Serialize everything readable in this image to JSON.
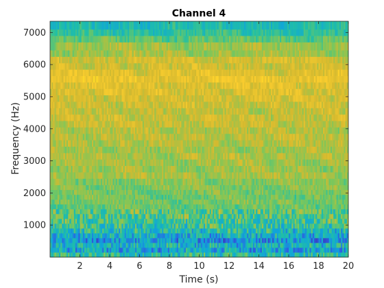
{
  "chart_data": {
    "type": "heatmap",
    "title": "Channel 4",
    "xlabel": "Time (s)",
    "ylabel": "Frequency (Hz)",
    "xlim": [
      0,
      20
    ],
    "ylim": [
      0,
      7350
    ],
    "xticks": [
      2,
      4,
      6,
      8,
      10,
      12,
      14,
      16,
      18,
      20
    ],
    "xtick_labels": [
      "2",
      "4",
      "6",
      "8",
      "10",
      "12",
      "14",
      "16",
      "18",
      "20"
    ],
    "yticks": [
      1000,
      2000,
      3000,
      4000,
      5000,
      6000,
      7000
    ],
    "ytick_labels": [
      "1000",
      "2000",
      "3000",
      "4000",
      "5000",
      "6000",
      "7000"
    ],
    "colormap": "parula",
    "colormap_stops": [
      "#3e26a8",
      "#2d5fe0",
      "#11a5d9",
      "#20bfa6",
      "#7cc75b",
      "#d5ba2f",
      "#fcce2e",
      "#f9fb15"
    ],
    "frequency_bands": [
      {
        "f": 0,
        "level": 0.42
      },
      {
        "f": 150,
        "level": 0.3
      },
      {
        "f": 300,
        "level": 0.36
      },
      {
        "f": 450,
        "level": 0.26
      },
      {
        "f": 600,
        "level": 0.33
      },
      {
        "f": 750,
        "level": 0.4
      },
      {
        "f": 900,
        "level": 0.45
      },
      {
        "f": 1050,
        "level": 0.47
      },
      {
        "f": 1200,
        "level": 0.5
      },
      {
        "f": 1350,
        "level": 0.52
      },
      {
        "f": 1500,
        "level": 0.54
      },
      {
        "f": 1650,
        "level": 0.56
      },
      {
        "f": 1800,
        "level": 0.55
      },
      {
        "f": 1950,
        "level": 0.56
      },
      {
        "f": 2100,
        "level": 0.58
      },
      {
        "f": 2250,
        "level": 0.59
      },
      {
        "f": 2450,
        "level": 0.64
      },
      {
        "f": 2650,
        "level": 0.62
      },
      {
        "f": 2850,
        "level": 0.63
      },
      {
        "f": 3050,
        "level": 0.65
      },
      {
        "f": 3250,
        "level": 0.63
      },
      {
        "f": 3450,
        "level": 0.66
      },
      {
        "f": 3650,
        "level": 0.67
      },
      {
        "f": 3850,
        "level": 0.66
      },
      {
        "f": 4050,
        "level": 0.69
      },
      {
        "f": 4250,
        "level": 0.7
      },
      {
        "f": 4450,
        "level": 0.68
      },
      {
        "f": 4650,
        "level": 0.71
      },
      {
        "f": 4850,
        "level": 0.72
      },
      {
        "f": 5050,
        "level": 0.74
      },
      {
        "f": 5250,
        "level": 0.75
      },
      {
        "f": 5450,
        "level": 0.79
      },
      {
        "f": 5650,
        "level": 0.76
      },
      {
        "f": 5850,
        "level": 0.71
      },
      {
        "f": 6050,
        "level": 0.72
      },
      {
        "f": 6250,
        "level": 0.63
      },
      {
        "f": 6450,
        "level": 0.62
      },
      {
        "f": 6700,
        "level": 0.52
      },
      {
        "f": 6900,
        "level": 0.44
      },
      {
        "f": 7100,
        "level": 0.4
      }
    ]
  }
}
